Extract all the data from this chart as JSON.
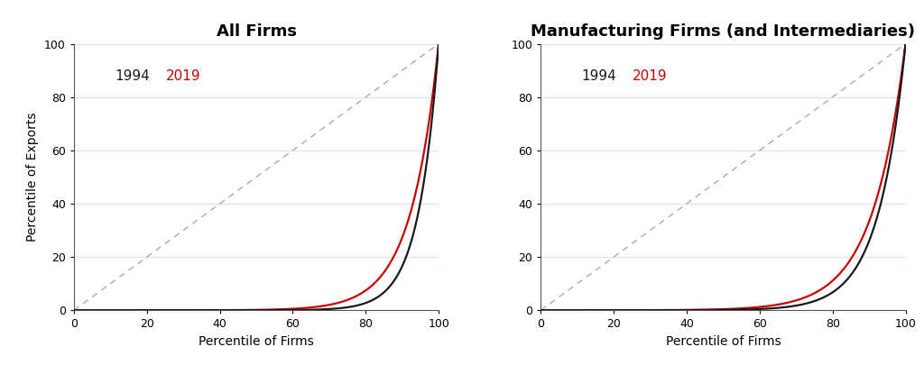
{
  "panel1_title": "All Firms",
  "panel2_title": "Manufacturing Firms (and Intermediaries)",
  "xlabel": "Percentile of Firms",
  "ylabel": "Percentile of Exports",
  "color_1994": "#1a1a1a",
  "color_2019": "#cc0000",
  "color_diag": "#aaaaaa",
  "grid_color": "#d0e8f5",
  "label_1994": "1994",
  "label_2019": "2019",
  "panel1_beta_1994": 18.0,
  "panel1_beta_2019": 13.0,
  "panel2_beta_1994": 13.5,
  "panel2_beta_2019": 11.0,
  "title_fontsize": 13,
  "label_fontsize": 10,
  "tick_fontsize": 9,
  "background_color": "#ffffff",
  "line_width": 1.6
}
